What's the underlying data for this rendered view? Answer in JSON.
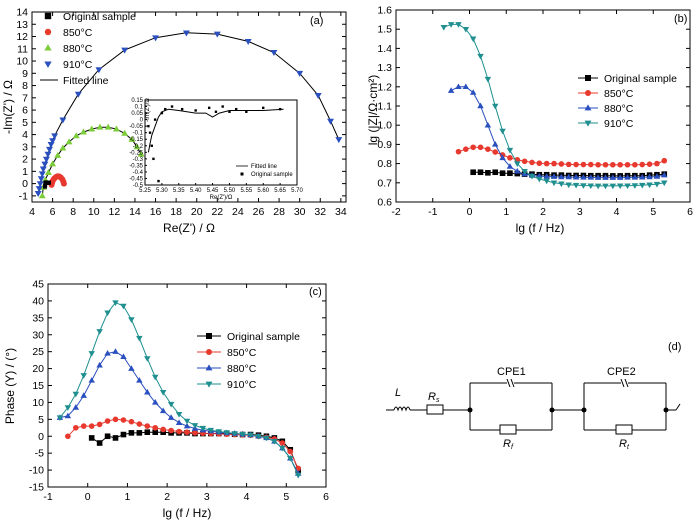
{
  "chart_data": [
    {
      "panel_label": "(a)",
      "type": "scatter",
      "xlabel": "Re(Z') / Ω",
      "ylabel": "-Im(Z') / Ω",
      "xlim": [
        4,
        34.5
      ],
      "ylim": [
        -1.5,
        14
      ],
      "xticks": [
        "4",
        "6",
        "8",
        "10",
        "12",
        "14",
        "16",
        "18",
        "20",
        "22",
        "24",
        "26",
        "28",
        "30",
        "32",
        "34"
      ],
      "yticks": [
        "-1",
        "0",
        "1",
        "2",
        "3",
        "4",
        "5",
        "6",
        "7",
        "8",
        "9",
        "10",
        "11",
        "12",
        "13",
        "14"
      ],
      "legend": [
        "Original sample",
        "850°C",
        "880°C",
        "910°C",
        "Fitted line"
      ],
      "series": [
        {
          "name": "Original sample",
          "color": "#000000",
          "marker": "square",
          "x": [
            5.26,
            5.28,
            5.3,
            5.32,
            5.35,
            5.4,
            5.45,
            5.5,
            5.6,
            5.65
          ],
          "y": [
            -0.25,
            -0.15,
            0.05,
            0.08,
            0.1,
            0.08,
            0.05,
            0.06,
            0.07,
            0.08
          ]
        },
        {
          "name": "850°C",
          "color": "#e8392e",
          "marker": "circle",
          "x": [
            5.9,
            5.95,
            6.0,
            6.1,
            6.2,
            6.35,
            6.5,
            6.65,
            6.8,
            6.95,
            7.05,
            7.1
          ],
          "y": [
            -0.1,
            0.05,
            0.2,
            0.35,
            0.45,
            0.55,
            0.6,
            0.58,
            0.5,
            0.35,
            0.15,
            0.0
          ]
        },
        {
          "name": "880°C",
          "color": "#7ccd3a",
          "marker": "triangle-up",
          "x": [
            5.0,
            5.1,
            5.3,
            5.6,
            6.0,
            6.5,
            7.0,
            7.6,
            8.3,
            9.0,
            9.8,
            10.6,
            11.4,
            12.2,
            13.0,
            13.7,
            14.2,
            14.6
          ],
          "y": [
            -1.0,
            -0.3,
            0.3,
            0.9,
            1.6,
            2.3,
            2.9,
            3.4,
            3.9,
            4.2,
            4.45,
            4.6,
            4.6,
            4.45,
            4.1,
            3.6,
            3.0,
            2.4
          ]
        },
        {
          "name": "910°C",
          "color": "#2a4fbf",
          "marker": "triangle-down",
          "x": [
            4.6,
            4.7,
            4.8,
            4.9,
            5.0,
            5.1,
            5.25,
            5.4,
            5.55,
            5.7,
            5.85,
            6.0,
            6.2,
            7.0,
            8.5,
            10.5,
            13.0,
            16.0,
            19.0,
            22.0,
            25.0,
            27.5,
            30.0,
            31.8,
            33.0,
            33.8
          ],
          "y": [
            -0.8,
            -0.4,
            0.0,
            0.4,
            0.8,
            1.2,
            1.6,
            2.0,
            2.4,
            2.8,
            3.2,
            3.5,
            3.9,
            5.2,
            7.3,
            9.3,
            10.9,
            11.9,
            12.3,
            12.2,
            11.6,
            10.7,
            9.0,
            7.2,
            5.1,
            3.6
          ]
        }
      ],
      "inset": {
        "xlabel": "Re(Z')/Ω",
        "ylabel": "-Im(Z')/Ω",
        "xlim": [
          5.25,
          5.7
        ],
        "ylim": [
          -0.5,
          0.15
        ],
        "xticks": [
          "5.25",
          "5.30",
          "5.35",
          "5.40",
          "5.45",
          "5.50",
          "5.55",
          "5.60",
          "5.65",
          "5.70"
        ],
        "yticks": [
          "0.15",
          "0.1",
          "0.05",
          "0",
          "-0.05",
          "-0.1",
          "-0.15",
          "-0.2",
          "-0.25",
          "-0.3",
          "-0.35",
          "-0.4",
          "-0.45",
          "-0.5"
        ],
        "legend": [
          "Fitted line",
          "Original sample"
        ]
      }
    },
    {
      "panel_label": "(b)",
      "type": "line",
      "xlabel": "lg (f / Hz)",
      "ylabel": "lg (|Z|/Ω·cm²)",
      "xlim": [
        -2,
        6
      ],
      "ylim": [
        0.6,
        1.6
      ],
      "xticks": [
        "-2",
        "-1",
        "0",
        "1",
        "2",
        "3",
        "4",
        "5",
        "6"
      ],
      "yticks": [
        "0.6",
        "0.7",
        "0.8",
        "0.9",
        "1.0",
        "1.1",
        "1.2",
        "1.3",
        "1.4",
        "1.5",
        "1.6"
      ],
      "legend": [
        "Original sample",
        "850°C",
        "880°C",
        "910°C"
      ],
      "x": [
        -0.7,
        -0.5,
        -0.3,
        -0.1,
        0.1,
        0.3,
        0.5,
        0.7,
        0.9,
        1.1,
        1.3,
        1.5,
        1.7,
        1.9,
        2.1,
        2.3,
        2.5,
        2.7,
        2.9,
        3.1,
        3.3,
        3.5,
        3.7,
        3.9,
        4.1,
        4.3,
        4.5,
        4.7,
        4.9,
        5.1,
        5.3
      ],
      "series": [
        {
          "name": "Original sample",
          "color": "#000000",
          "marker": "square",
          "x_start": 0.1,
          "values": [
            null,
            null,
            null,
            null,
            0.755,
            0.755,
            0.752,
            0.755,
            0.75,
            0.75,
            0.748,
            0.745,
            0.745,
            0.742,
            0.742,
            0.74,
            0.74,
            0.738,
            0.738,
            0.738,
            0.737,
            0.737,
            0.737,
            0.736,
            0.736,
            0.737,
            0.737,
            0.737,
            0.74,
            0.742,
            0.745
          ]
        },
        {
          "name": "850°C",
          "color": "#e8392e",
          "marker": "circle",
          "values": [
            null,
            null,
            0.862,
            0.875,
            0.885,
            0.885,
            0.875,
            0.86,
            0.845,
            0.83,
            0.82,
            0.812,
            0.806,
            0.802,
            0.8,
            0.8,
            0.798,
            0.796,
            0.795,
            0.795,
            0.795,
            0.794,
            0.794,
            0.794,
            0.794,
            0.794,
            0.794,
            0.795,
            0.797,
            0.8,
            0.815
          ]
        },
        {
          "name": "880°C",
          "color": "#2a4fbf",
          "marker": "triangle-up",
          "values": [
            null,
            1.18,
            1.2,
            1.2,
            1.17,
            1.1,
            1.0,
            0.9,
            0.83,
            0.785,
            0.76,
            0.745,
            0.738,
            0.735,
            0.733,
            0.732,
            0.73,
            0.73,
            0.729,
            0.728,
            0.728,
            0.727,
            0.727,
            0.727,
            0.727,
            0.728,
            0.728,
            0.729,
            0.73,
            0.733,
            0.74
          ]
        },
        {
          "name": "910°C",
          "color": "#1f8f8f",
          "marker": "triangle-down",
          "values": [
            1.51,
            1.525,
            1.525,
            1.5,
            1.45,
            1.36,
            1.24,
            1.1,
            0.97,
            0.87,
            0.8,
            0.76,
            0.735,
            0.72,
            0.71,
            0.7,
            0.695,
            0.69,
            0.688,
            0.686,
            0.685,
            0.684,
            0.684,
            0.684,
            0.685,
            0.685,
            0.686,
            0.688,
            0.69,
            0.693,
            0.7
          ]
        }
      ]
    },
    {
      "panel_label": "(c)",
      "type": "line",
      "xlabel": "lg (f / Hz)",
      "ylabel": "Phase (Y) / (°)",
      "xlim": [
        -1,
        6
      ],
      "ylim": [
        -15,
        45
      ],
      "xticks": [
        "-1",
        "0",
        "1",
        "2",
        "3",
        "4",
        "5",
        "6"
      ],
      "yticks": [
        "-15",
        "-10",
        "-5",
        "0",
        "5",
        "10",
        "15",
        "20",
        "25",
        "30",
        "35",
        "40",
        "45"
      ],
      "legend": [
        "Original sample",
        "850°C",
        "880°C",
        "910°C"
      ],
      "x": [
        -0.7,
        -0.5,
        -0.3,
        -0.1,
        0.1,
        0.3,
        0.5,
        0.7,
        0.9,
        1.1,
        1.3,
        1.5,
        1.7,
        1.9,
        2.1,
        2.3,
        2.5,
        2.7,
        2.9,
        3.1,
        3.3,
        3.5,
        3.7,
        3.9,
        4.1,
        4.3,
        4.5,
        4.7,
        4.9,
        5.1,
        5.3
      ],
      "series": [
        {
          "name": "Original sample",
          "color": "#000000",
          "marker": "square",
          "values": [
            null,
            null,
            null,
            null,
            -0.5,
            -2.0,
            0.0,
            -0.5,
            0.5,
            1.0,
            1.0,
            1.2,
            1.2,
            1.2,
            1.0,
            1.0,
            1.0,
            0.8,
            0.8,
            0.8,
            0.8,
            0.8,
            0.6,
            0.5,
            0.5,
            0.3,
            0.0,
            -0.5,
            -1.5,
            -4.0,
            -10.0
          ]
        },
        {
          "name": "850°C",
          "color": "#e8392e",
          "marker": "circle",
          "values": [
            null,
            0.0,
            2.5,
            3.0,
            3.0,
            3.5,
            4.5,
            5.0,
            4.8,
            4.3,
            3.6,
            3.0,
            2.5,
            2.0,
            1.7,
            1.4,
            1.2,
            1.0,
            0.9,
            0.8,
            0.7,
            0.6,
            0.5,
            0.4,
            0.3,
            0.0,
            -0.3,
            -0.8,
            -2.0,
            -4.5,
            -9.5
          ]
        },
        {
          "name": "880°C",
          "color": "#2a4fbf",
          "marker": "triangle-up",
          "values": [
            5.5,
            6.0,
            8.5,
            12.0,
            16.5,
            21.0,
            24.5,
            25.0,
            23.5,
            20.0,
            16.5,
            13.0,
            10.0,
            7.5,
            5.5,
            4.0,
            3.0,
            2.3,
            1.8,
            1.5,
            1.2,
            1.0,
            0.8,
            0.6,
            0.4,
            0.0,
            -0.5,
            -1.5,
            -3.5,
            -6.5,
            -11.0
          ]
        },
        {
          "name": "910°C",
          "color": "#1f8f8f",
          "marker": "triangle-down",
          "values": [
            5.5,
            8.5,
            12.5,
            18.0,
            24.5,
            31.0,
            36.5,
            39.5,
            38.5,
            34.5,
            29.0,
            23.0,
            17.5,
            13.0,
            9.5,
            6.5,
            4.5,
            3.2,
            2.4,
            1.8,
            1.4,
            1.1,
            0.8,
            0.6,
            0.4,
            0.0,
            -0.5,
            -1.5,
            -3.5,
            -6.5,
            -11.5
          ]
        }
      ]
    }
  ],
  "circuit": {
    "panel_label": "(d)",
    "labels": {
      "L": "L",
      "Rs_main": "R",
      "Rs_sub": "s",
      "cpe1": "CPE1",
      "cpe2": "CPE2",
      "R1_main": "R",
      "R1_sub": "f",
      "R2_main": "R",
      "R2_sub": "t"
    }
  }
}
